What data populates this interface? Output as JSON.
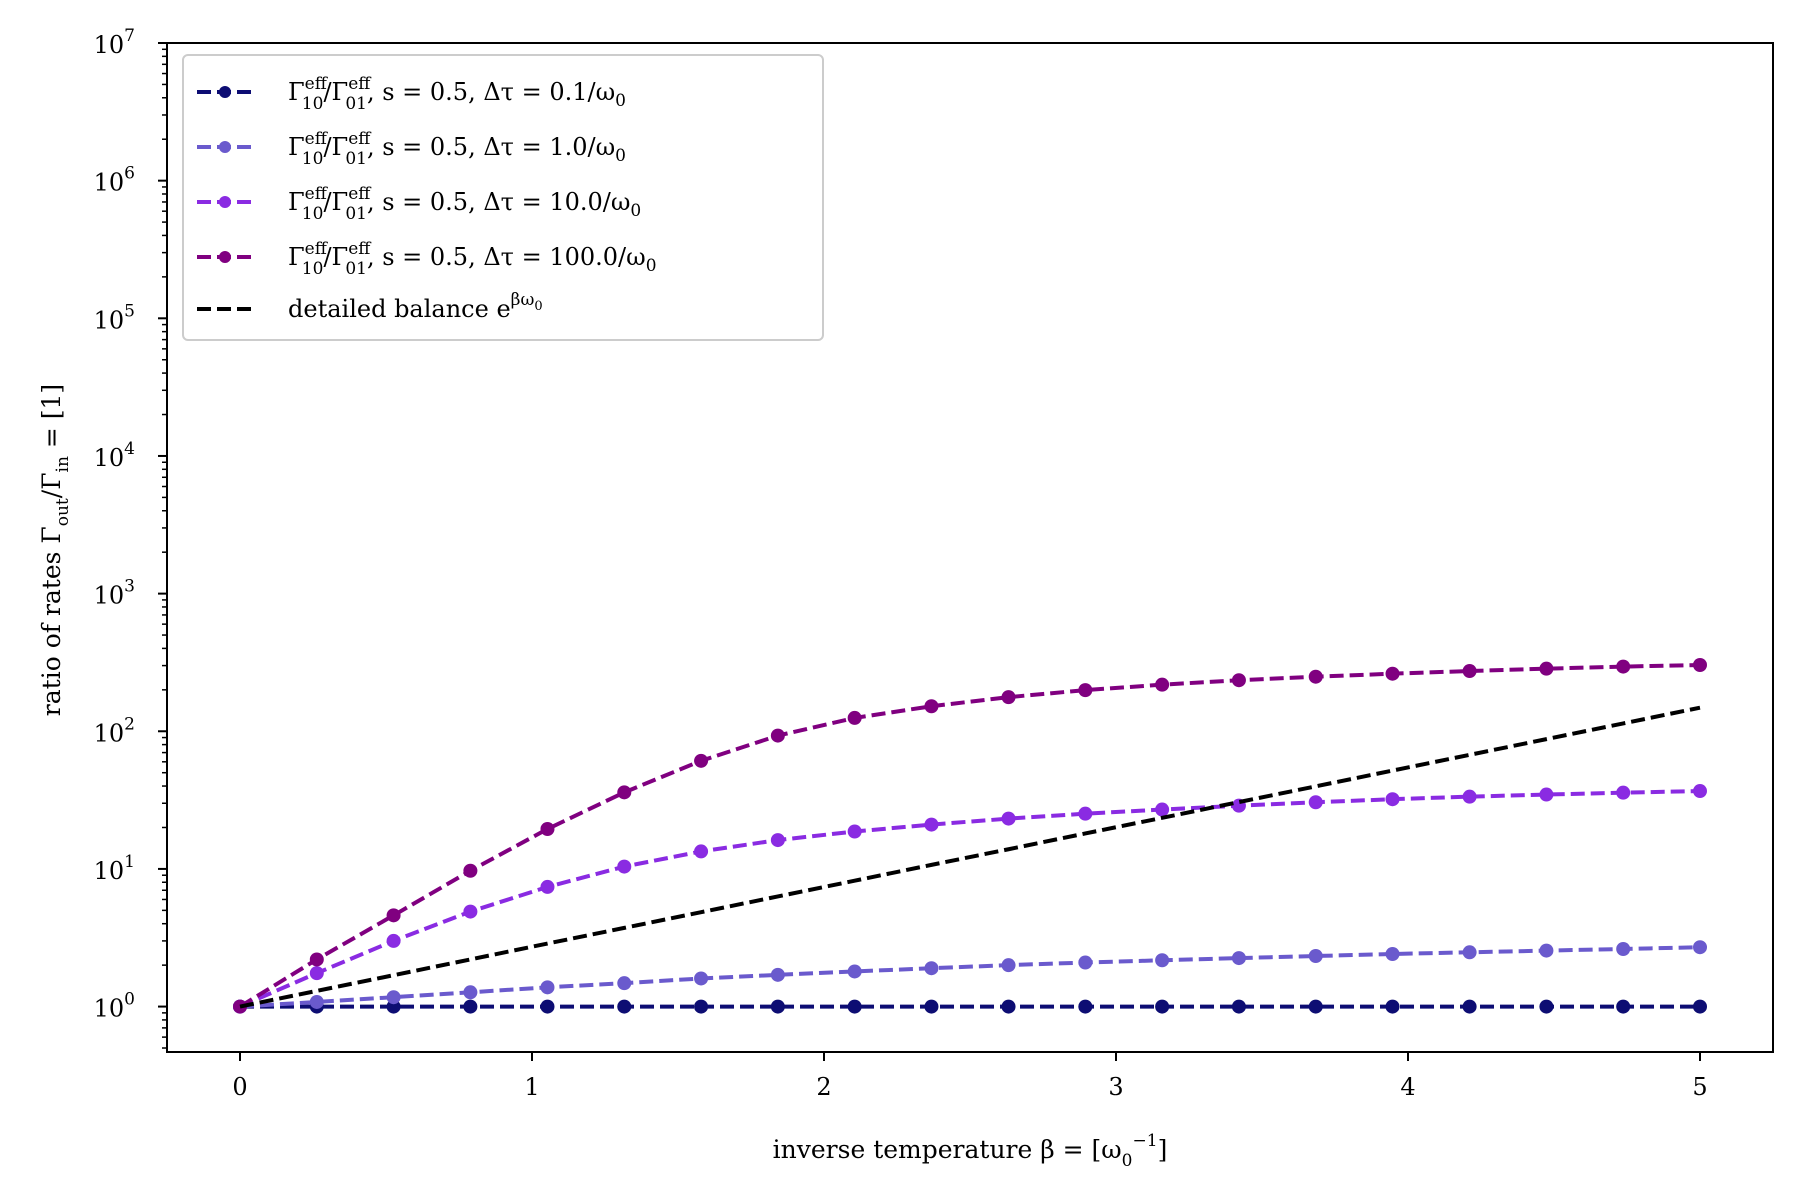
{
  "chart_data": {
    "type": "line",
    "xlabel": "inverse temperature β = [ω₀⁻¹]",
    "ylabel": "ratio of rates Γ_out/Γ_in = [1]",
    "xlim": [
      -0.25,
      5.25
    ],
    "ylim_log10": [
      -0.33,
      7
    ],
    "y_scale": "log",
    "grid": false,
    "legend_position": "top-left",
    "x_ticks": [
      "0",
      "1",
      "2",
      "3",
      "4",
      "5"
    ],
    "y_ticks": [
      {
        "base": "10",
        "exp": "0"
      },
      {
        "base": "10",
        "exp": "1"
      },
      {
        "base": "10",
        "exp": "2"
      },
      {
        "base": "10",
        "exp": "3"
      },
      {
        "base": "10",
        "exp": "4"
      },
      {
        "base": "10",
        "exp": "5"
      },
      {
        "base": "10",
        "exp": "6"
      },
      {
        "base": "10",
        "exp": "7"
      }
    ],
    "x": [
      0,
      0.263,
      0.526,
      0.789,
      1.053,
      1.316,
      1.579,
      1.842,
      2.105,
      2.368,
      2.632,
      2.895,
      3.158,
      3.421,
      3.684,
      3.947,
      4.211,
      4.474,
      4.737,
      5.0
    ],
    "series": [
      {
        "name": "Γ10eff/Γ01eff, s = 0.5, Δτ = 0.1/ω0",
        "color": "#0d0d73",
        "line": "dashed",
        "marker": "circle",
        "values": [
          1.0,
          1.0,
          1.0,
          1.0,
          1.0,
          1.0,
          1.0,
          1.0,
          1.0,
          1.0,
          1.0,
          1.0,
          1.0,
          1.0,
          1.0,
          1.0,
          1.0,
          1.0,
          1.0,
          1.0
        ]
      },
      {
        "name": "Γ10eff/Γ01eff, s = 0.5, Δτ = 1.0/ω0",
        "color": "#6a5acd",
        "line": "dashed",
        "marker": "circle",
        "values": [
          1.0,
          1.08,
          1.17,
          1.27,
          1.38,
          1.48,
          1.6,
          1.7,
          1.8,
          1.9,
          2.0,
          2.09,
          2.17,
          2.25,
          2.33,
          2.41,
          2.48,
          2.55,
          2.62,
          2.7
        ]
      },
      {
        "name": "Γ10eff/Γ01eff, s = 0.5, Δτ = 10.0/ω0",
        "color": "#8a2be2",
        "line": "dashed",
        "marker": "circle",
        "values": [
          1.0,
          1.75,
          3.0,
          4.9,
          7.4,
          10.4,
          13.4,
          16.2,
          18.7,
          21.0,
          23.2,
          25.2,
          27.0,
          28.8,
          30.5,
          32.1,
          33.5,
          34.7,
          35.8,
          36.8
        ]
      },
      {
        "name": "Γ10eff/Γ01eff, s = 0.5, Δτ = 100.0/ω0",
        "color": "#800080",
        "line": "dashed",
        "marker": "circle",
        "values": [
          1.0,
          2.2,
          4.6,
          9.7,
          19.5,
          36.0,
          61.0,
          93.0,
          125.0,
          152.0,
          177.0,
          199.0,
          218.0,
          235.0,
          249.0,
          262.0,
          274.0,
          285.0,
          295.0,
          303.0
        ]
      },
      {
        "name": "detailed balance e^{βω0}",
        "color": "#000000",
        "line": "dashed",
        "marker": "none",
        "values": [
          1.0,
          1.3,
          1.69,
          2.2,
          2.87,
          3.73,
          4.85,
          6.31,
          8.21,
          10.7,
          13.9,
          18.1,
          23.5,
          30.6,
          39.8,
          51.8,
          67.4,
          87.7,
          114.0,
          148.4
        ]
      }
    ]
  },
  "legend": {
    "items": [
      {
        "ratio": "Γ",
        "sup1": "eff",
        "sub1": "10",
        "mid": "/Γ",
        "sup2": "eff",
        "sub2": "01",
        "rest": ", s = 0.5, Δτ = 0.1/ω",
        "sub3": "0"
      },
      {
        "ratio": "Γ",
        "sup1": "eff",
        "sub1": "10",
        "mid": "/Γ",
        "sup2": "eff",
        "sub2": "01",
        "rest": ", s = 0.5, Δτ = 1.0/ω",
        "sub3": "0"
      },
      {
        "ratio": "Γ",
        "sup1": "eff",
        "sub1": "10",
        "mid": "/Γ",
        "sup2": "eff",
        "sub2": "01",
        "rest": ", s = 0.5, Δτ = 10.0/ω",
        "sub3": "0"
      },
      {
        "ratio": "Γ",
        "sup1": "eff",
        "sub1": "10",
        "mid": "/Γ",
        "sup2": "eff",
        "sub2": "01",
        "rest": ", s = 0.5, Δτ = 100.0/ω",
        "sub3": "0"
      }
    ],
    "balance": {
      "text": "detailed balance e",
      "sup": "βω",
      "supsub": "0"
    }
  },
  "labels": {
    "x_main": "inverse temperature β = [ω",
    "x_sub": "0",
    "x_sup": "−1",
    "x_end": "]",
    "y_main": "ratio of rates Γ",
    "y_sub1": "out",
    "y_mid": "/Γ",
    "y_sub2": "in",
    "y_end": " = [1]"
  }
}
